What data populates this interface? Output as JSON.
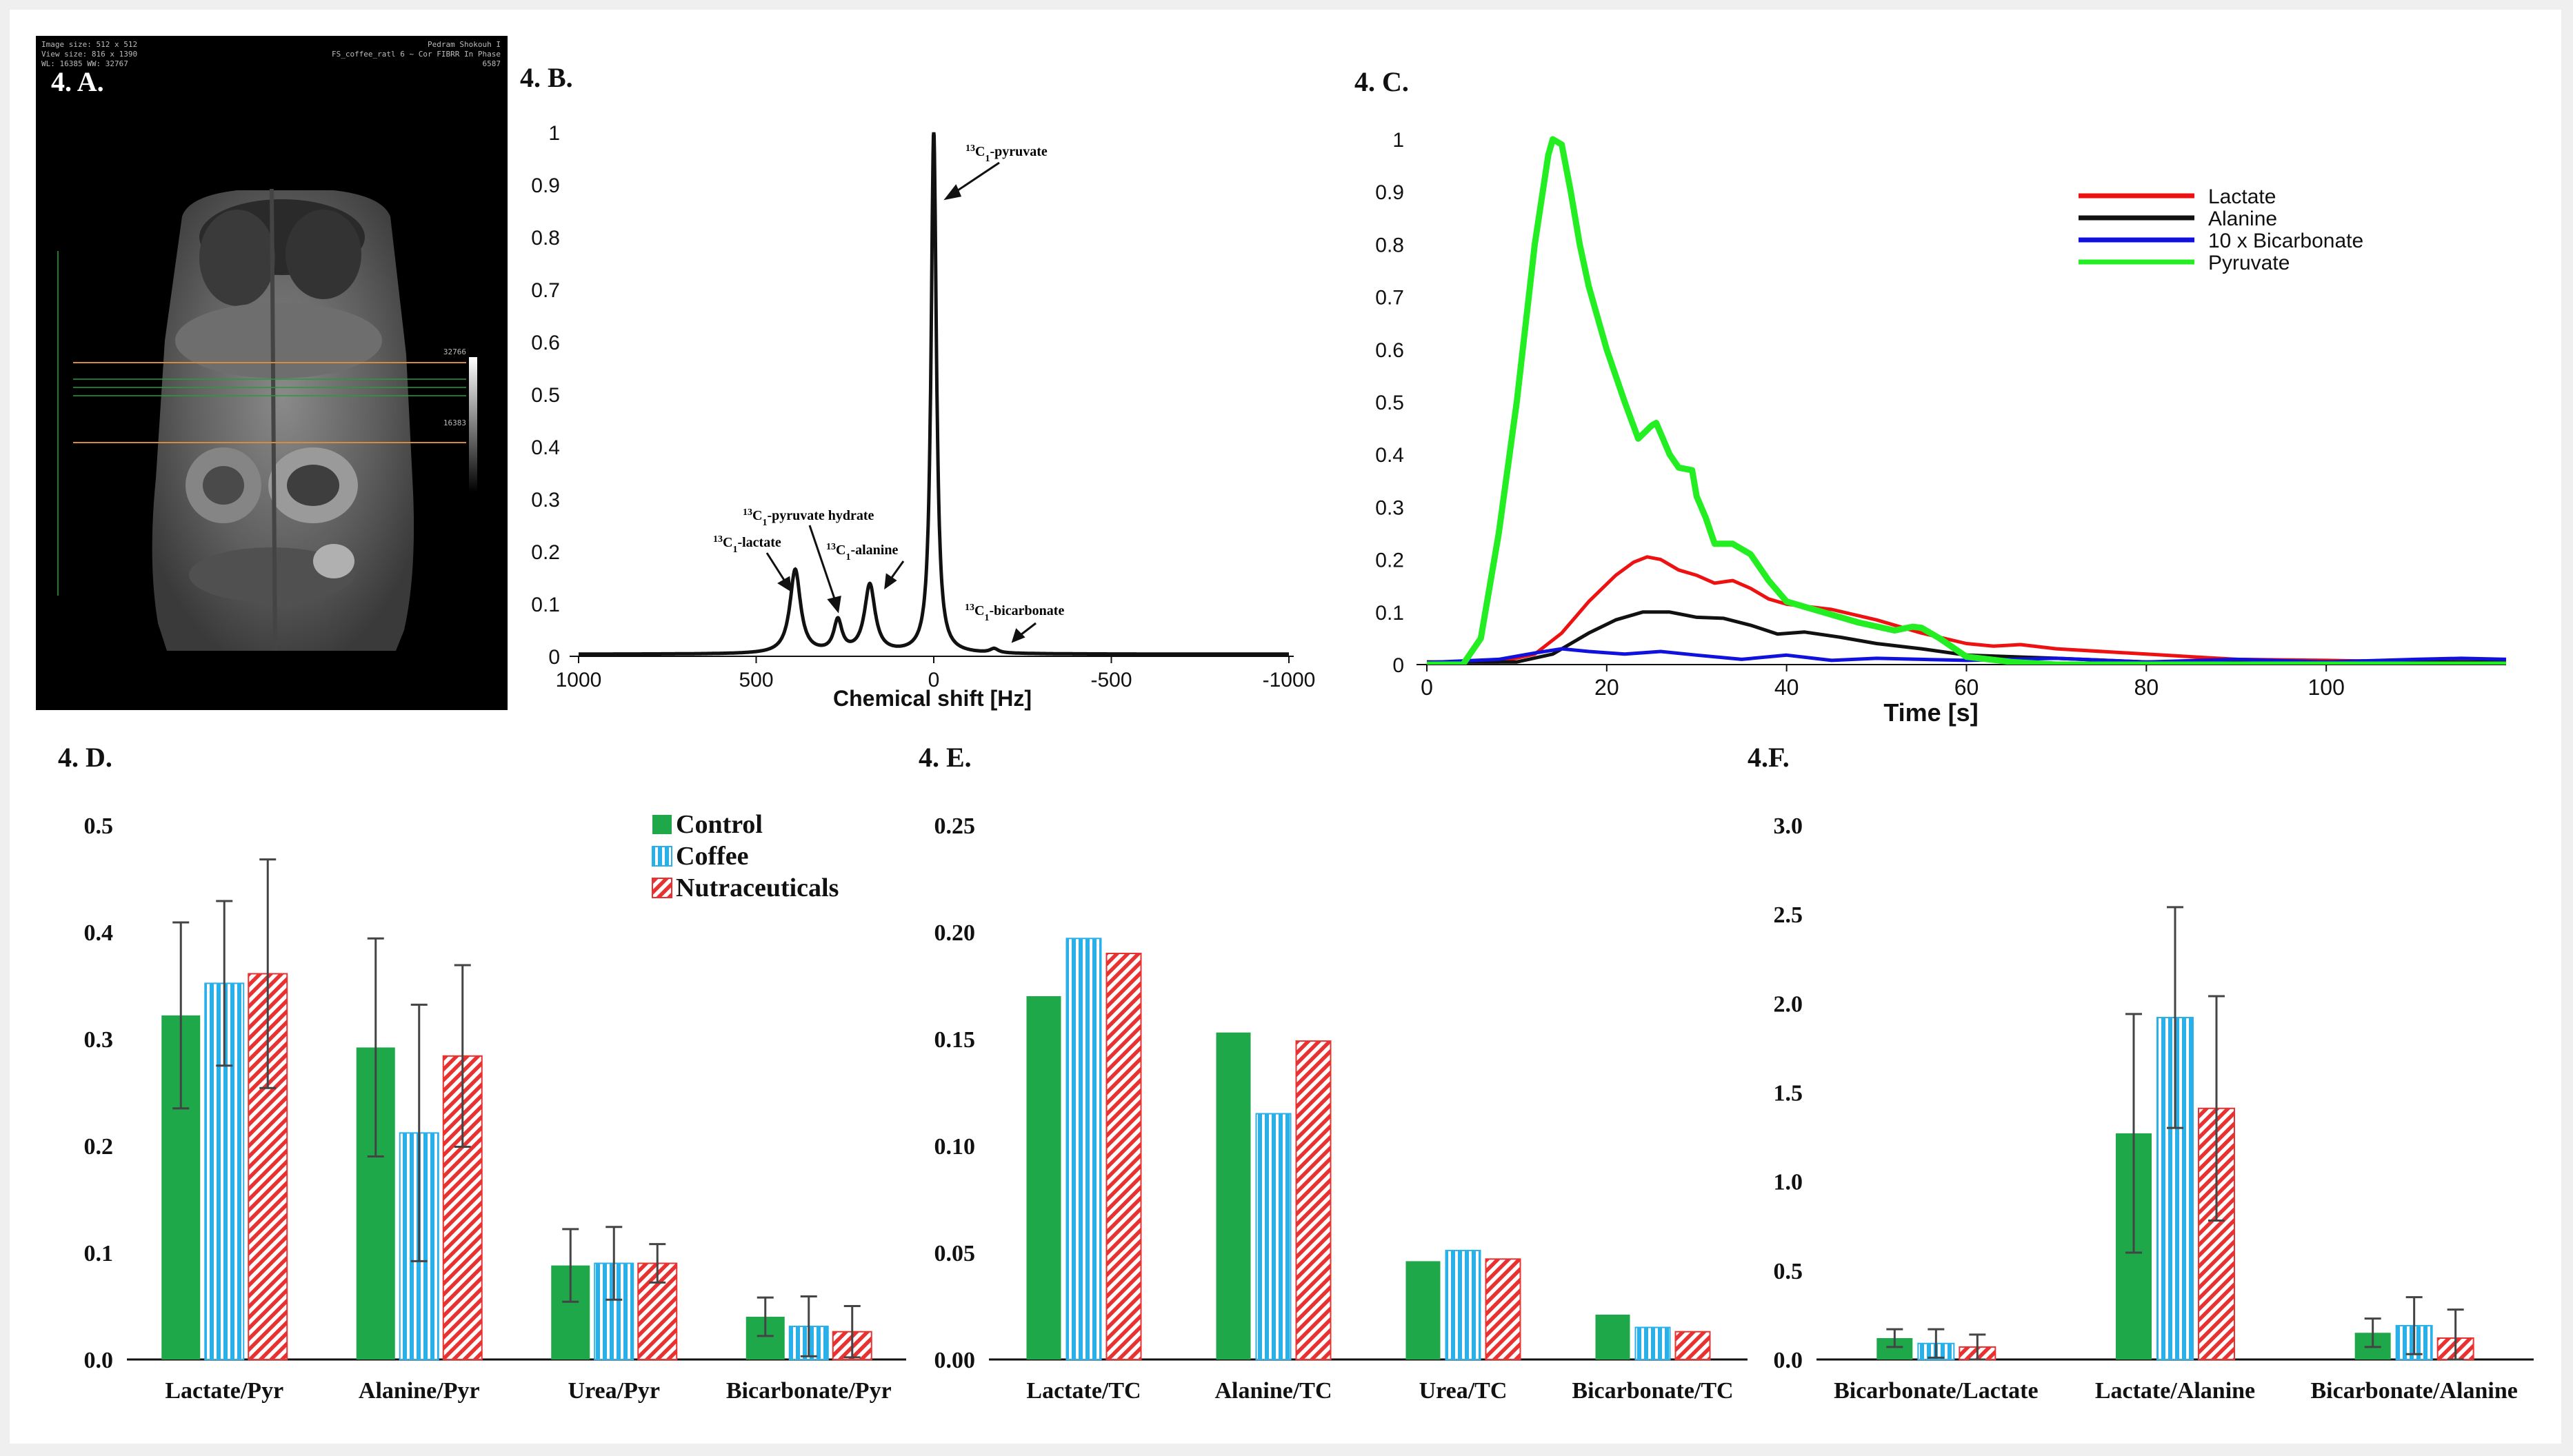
{
  "panel_labels": {
    "a": "4. A.",
    "b": "4. B.",
    "c": "4. C.",
    "d": "4. D.",
    "e": "4. E.",
    "f": "4.F."
  },
  "mri": {
    "info_left": [
      "Image size: 512 x 512",
      "View size: 816 x 1390",
      "WL: 16385 WW: 32767"
    ],
    "info_right": [
      "Pedram Shokouh  I",
      "FS_coffee_ratl 6 ~ Cor FIBRR In Phase",
      "6587"
    ],
    "scale_top": "32766",
    "scale_mid": "16383"
  },
  "chart_data": [
    {
      "id": "B",
      "type": "line",
      "title": "",
      "xlabel": "Chemical shift [Hz]",
      "xlim": [
        1000,
        -1000
      ],
      "ylim": [
        0,
        1
      ],
      "xticks": [
        "1000",
        "500",
        "0",
        "-500",
        "-1000"
      ],
      "yticks": [
        "0",
        "0.1",
        "0.2",
        "0.3",
        "0.4",
        "0.5",
        "0.6",
        "0.7",
        "0.8",
        "0.9",
        "1"
      ],
      "peaks": [
        {
          "name": "13C1-lactate",
          "x": 390,
          "height": 0.16,
          "width": 18
        },
        {
          "name": "13C1-pyruvate hydrate",
          "x": 270,
          "height": 0.06,
          "width": 14
        },
        {
          "name": "13C1-alanine",
          "x": 180,
          "height": 0.13,
          "width": 18
        },
        {
          "name": "13C1-pyruvate",
          "x": 0,
          "height": 1.0,
          "width": 9
        },
        {
          "name": "13C1-bicarbonate",
          "x": -170,
          "height": 0.008,
          "width": 14
        }
      ],
      "annotations": [
        {
          "sup": "13",
          "sub": "1",
          "name": "-pyruvate"
        },
        {
          "sup": "13",
          "sub": "1",
          "name": "-pyruvate hydrate"
        },
        {
          "sup": "13",
          "sub": "1",
          "name": "-lactate"
        },
        {
          "sup": "13",
          "sub": "1",
          "name": "-alanine"
        },
        {
          "sup": "13",
          "sub": "1",
          "name": "-bicarbonate"
        }
      ]
    },
    {
      "id": "C",
      "type": "line",
      "title": "",
      "xlabel": "Time [s]",
      "xlim": [
        0,
        120
      ],
      "ylim": [
        0,
        1
      ],
      "xticks": [
        "0",
        "20",
        "40",
        "60",
        "80",
        "100"
      ],
      "yticks": [
        "0",
        "0.1",
        "0.2",
        "0.3",
        "0.4",
        "0.5",
        "0.6",
        "0.7",
        "0.8",
        "0.9",
        "1"
      ],
      "legend_position": "top-right",
      "series": [
        {
          "name": "Lactate",
          "color": "#ee1111",
          "points": [
            [
              0,
              0.005
            ],
            [
              8,
              0.005
            ],
            [
              12,
              0.02
            ],
            [
              15,
              0.06
            ],
            [
              18,
              0.12
            ],
            [
              21,
              0.17
            ],
            [
              23,
              0.195
            ],
            [
              24.5,
              0.205
            ],
            [
              26,
              0.2
            ],
            [
              28,
              0.18
            ],
            [
              30,
              0.17
            ],
            [
              32,
              0.155
            ],
            [
              34,
              0.16
            ],
            [
              36,
              0.145
            ],
            [
              38,
              0.125
            ],
            [
              40,
              0.115
            ],
            [
              45,
              0.105
            ],
            [
              50,
              0.085
            ],
            [
              55,
              0.06
            ],
            [
              60,
              0.04
            ],
            [
              63,
              0.035
            ],
            [
              66,
              0.038
            ],
            [
              70,
              0.03
            ],
            [
              80,
              0.02
            ],
            [
              90,
              0.01
            ],
            [
              100,
              0.008
            ],
            [
              110,
              0.005
            ],
            [
              120,
              0.005
            ]
          ]
        },
        {
          "name": "Alanine",
          "color": "#111111",
          "points": [
            [
              0,
              0.005
            ],
            [
              10,
              0.005
            ],
            [
              14,
              0.02
            ],
            [
              18,
              0.06
            ],
            [
              21,
              0.085
            ],
            [
              24,
              0.1
            ],
            [
              27,
              0.1
            ],
            [
              30,
              0.09
            ],
            [
              33,
              0.088
            ],
            [
              36,
              0.075
            ],
            [
              39,
              0.058
            ],
            [
              42,
              0.062
            ],
            [
              46,
              0.052
            ],
            [
              50,
              0.04
            ],
            [
              55,
              0.03
            ],
            [
              60,
              0.018
            ],
            [
              70,
              0.012
            ],
            [
              80,
              0.005
            ],
            [
              120,
              0.005
            ]
          ]
        },
        {
          "name": "10 x Bicarbonate",
          "color": "#1111dd",
          "points": [
            [
              0,
              0.004
            ],
            [
              8,
              0.01
            ],
            [
              12,
              0.022
            ],
            [
              15,
              0.03
            ],
            [
              18,
              0.025
            ],
            [
              22,
              0.02
            ],
            [
              26,
              0.025
            ],
            [
              30,
              0.018
            ],
            [
              35,
              0.01
            ],
            [
              40,
              0.018
            ],
            [
              45,
              0.008
            ],
            [
              50,
              0.012
            ],
            [
              60,
              0.008
            ],
            [
              70,
              0.012
            ],
            [
              80,
              0.005
            ],
            [
              90,
              0.01
            ],
            [
              100,
              0.005
            ],
            [
              110,
              0.01
            ],
            [
              115,
              0.012
            ],
            [
              120,
              0.01
            ]
          ]
        },
        {
          "name": "Pyruvate",
          "color": "#22ee22",
          "points": [
            [
              0,
              0.0
            ],
            [
              4,
              0.0
            ],
            [
              6,
              0.05
            ],
            [
              8,
              0.25
            ],
            [
              10,
              0.5
            ],
            [
              12,
              0.8
            ],
            [
              13.5,
              0.97
            ],
            [
              14,
              1.0
            ],
            [
              15,
              0.99
            ],
            [
              16,
              0.9
            ],
            [
              17,
              0.8
            ],
            [
              18,
              0.72
            ],
            [
              20,
              0.6
            ],
            [
              22,
              0.5
            ],
            [
              23.5,
              0.43
            ],
            [
              25,
              0.455
            ],
            [
              25.5,
              0.46
            ],
            [
              27,
              0.4
            ],
            [
              28,
              0.375
            ],
            [
              29.5,
              0.37
            ],
            [
              30,
              0.32
            ],
            [
              31,
              0.28
            ],
            [
              32,
              0.23
            ],
            [
              34,
              0.23
            ],
            [
              36,
              0.21
            ],
            [
              38,
              0.16
            ],
            [
              40,
              0.12
            ],
            [
              44,
              0.1
            ],
            [
              48,
              0.08
            ],
            [
              52,
              0.065
            ],
            [
              54,
              0.072
            ],
            [
              55,
              0.07
            ],
            [
              57,
              0.05
            ],
            [
              60,
              0.015
            ],
            [
              65,
              0.005
            ],
            [
              70,
              0.0
            ],
            [
              120,
              0.0
            ]
          ]
        }
      ]
    },
    {
      "id": "D",
      "type": "bar",
      "categories": [
        "Lactate/Pyr",
        "Alanine/Pyr",
        "Urea/Pyr",
        "Bicarbonate/Pyr"
      ],
      "ylim": [
        0,
        0.5
      ],
      "yticks": [
        "0.0",
        "0.1",
        "0.2",
        "0.3",
        "0.4",
        "0.5"
      ],
      "legend_position": "top-right",
      "series": [
        {
          "name": "Control",
          "color": "#1ea84a",
          "values": [
            0.322,
            0.292,
            0.088,
            0.04
          ],
          "errors": [
            0.087,
            0.102,
            0.034,
            0.018
          ]
        },
        {
          "name": "Coffee",
          "color": "#2ab0e8",
          "values": [
            0.352,
            0.212,
            0.09,
            0.031
          ],
          "errors": [
            0.077,
            0.12,
            0.034,
            0.028
          ]
        },
        {
          "name": "Nutraceuticals",
          "color": "#e83232",
          "values": [
            0.361,
            0.284,
            0.09,
            0.026
          ],
          "errors": [
            0.107,
            0.085,
            0.018,
            0.024
          ]
        }
      ]
    },
    {
      "id": "E",
      "type": "bar",
      "categories": [
        "Lactate/TC",
        "Alanine/TC",
        "Urea/TC",
        "Bicarbonate/TC"
      ],
      "ylim": [
        0,
        0.25
      ],
      "yticks": [
        "0.00",
        "0.05",
        "0.10",
        "0.15",
        "0.20",
        "0.25"
      ],
      "series": [
        {
          "name": "Control",
          "color": "#1ea84a",
          "values": [
            0.17,
            0.153,
            0.046,
            0.021
          ]
        },
        {
          "name": "Coffee",
          "color": "#2ab0e8",
          "values": [
            0.197,
            0.115,
            0.051,
            0.015
          ]
        },
        {
          "name": "Nutraceuticals",
          "color": "#e83232",
          "values": [
            0.19,
            0.149,
            0.047,
            0.013
          ]
        }
      ]
    },
    {
      "id": "F",
      "type": "bar",
      "categories": [
        "Bicarbonate/Lactate",
        "Lactate/Alanine",
        "Bicarbonate/Alanine"
      ],
      "ylim": [
        0,
        3.0
      ],
      "yticks": [
        "0.0",
        "0.5",
        "1.0",
        "1.5",
        "2.0",
        "2.5",
        "3.0"
      ],
      "series": [
        {
          "name": "Control",
          "color": "#1ea84a",
          "values": [
            0.12,
            1.27,
            0.15
          ],
          "errors": [
            0.05,
            0.67,
            0.08
          ]
        },
        {
          "name": "Coffee",
          "color": "#2ab0e8",
          "values": [
            0.09,
            1.92,
            0.19
          ],
          "errors": [
            0.08,
            0.62,
            0.16
          ]
        },
        {
          "name": "Nutraceuticals",
          "color": "#e83232",
          "values": [
            0.07,
            1.41,
            0.12
          ],
          "errors": [
            0.07,
            0.63,
            0.16
          ]
        }
      ]
    }
  ]
}
